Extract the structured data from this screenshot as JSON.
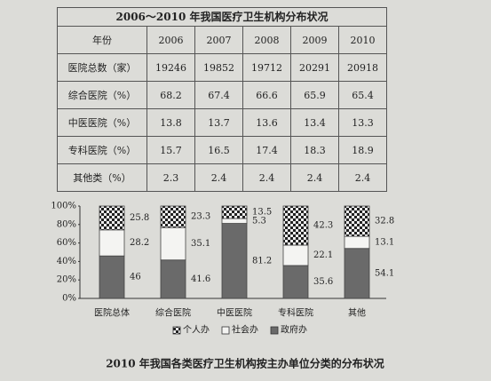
{
  "table": {
    "title": "2006～2010 年我国医疗卫生机构分布状况",
    "header": [
      "年份",
      "2006",
      "2007",
      "2008",
      "2009",
      "2010"
    ],
    "rows": [
      [
        "医院总数（家）",
        19246,
        19852,
        19712,
        20291,
        20918
      ],
      [
        "综合医院（%）",
        68.2,
        67.4,
        66.6,
        65.9,
        65.4
      ],
      [
        "中医医院（%）",
        13.8,
        13.7,
        13.6,
        13.4,
        13.3
      ],
      [
        "专科医院（%）",
        15.7,
        16.5,
        17.4,
        18.3,
        18.9
      ],
      [
        "其他类（%）",
        2.3,
        2.4,
        2.4,
        2.4,
        2.4
      ]
    ]
  },
  "chart_data": {
    "type": "stacked_bar",
    "title": "2010 年我国各类医疗卫生机构按主办单位分类的分布状况",
    "categories": [
      "医院总体",
      "综合医院",
      "中医医院",
      "专科医院",
      "其他"
    ],
    "series": [
      {
        "name": "政府办",
        "color": "#6a6a6a",
        "values": [
          46,
          41.6,
          81.2,
          35.6,
          54.1
        ]
      },
      {
        "name": "社会办",
        "color": "#f4f4f2",
        "values": [
          28.2,
          35.1,
          5.3,
          22.1,
          13.1
        ]
      },
      {
        "name": "个人办",
        "color": "#2a2a2a",
        "pattern": "checker",
        "values": [
          25.8,
          23.3,
          13.5,
          42.3,
          32.8
        ]
      }
    ],
    "ylim": [
      0,
      100
    ],
    "yticks": [
      {
        "value": 0,
        "label": "0%"
      },
      {
        "value": 20,
        "label": "20%"
      },
      {
        "value": 40,
        "label": "40%"
      },
      {
        "value": 60,
        "label": "60%"
      },
      {
        "value": 80,
        "label": "80%"
      },
      {
        "value": 100,
        "label": "100%"
      }
    ],
    "legend": "bottom"
  }
}
